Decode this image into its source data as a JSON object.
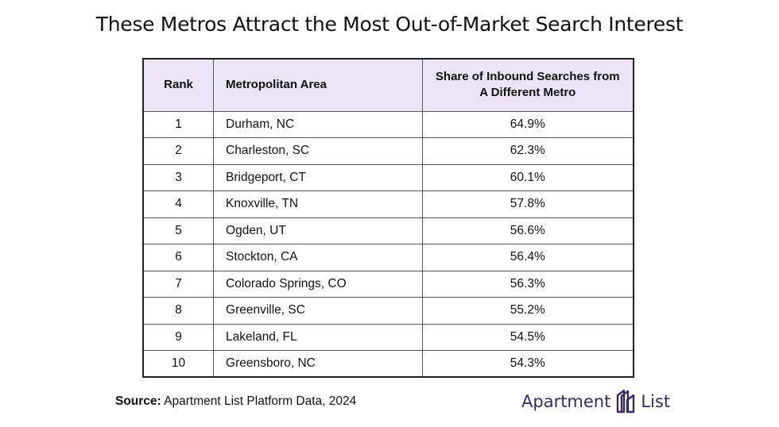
{
  "title": "These Metros Attract the Most Out-of-Market Search Interest",
  "chart_data": {
    "type": "table",
    "columns": [
      "Rank",
      "Metropolitan Area",
      "Share of Inbound Searches from A Different Metro"
    ],
    "rows": [
      {
        "rank": "1",
        "metro": "Durham, NC",
        "share": "64.9%"
      },
      {
        "rank": "2",
        "metro": "Charleston, SC",
        "share": "62.3%"
      },
      {
        "rank": "3",
        "metro": "Bridgeport, CT",
        "share": "60.1%"
      },
      {
        "rank": "4",
        "metro": "Knoxville, TN",
        "share": "57.8%"
      },
      {
        "rank": "5",
        "metro": "Ogden, UT",
        "share": "56.6%"
      },
      {
        "rank": "6",
        "metro": "Stockton, CA",
        "share": "56.4%"
      },
      {
        "rank": "7",
        "metro": "Colorado Springs, CO",
        "share": "56.3%"
      },
      {
        "rank": "8",
        "metro": "Greenville, SC",
        "share": "55.2%"
      },
      {
        "rank": "9",
        "metro": "Lakeland, FL",
        "share": "54.5%"
      },
      {
        "rank": "10",
        "metro": "Greensboro, NC",
        "share": "54.3%"
      }
    ]
  },
  "source": {
    "label": "Source:",
    "text": "Apartment List Platform Data, 2024"
  },
  "logo": {
    "left_text": "Apartment",
    "right_text": "List",
    "icon": "apartment-list-logo-icon",
    "color": "#3b2a5e"
  },
  "colors": {
    "header_bg": "#ece4f5",
    "border": "#222222"
  }
}
